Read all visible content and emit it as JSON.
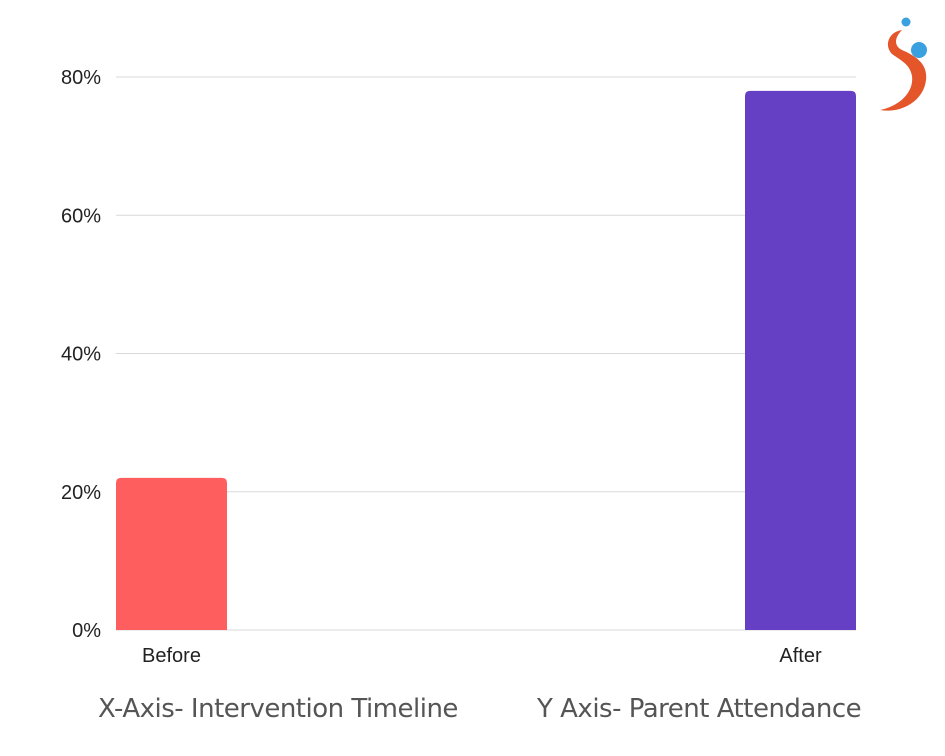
{
  "chart_data": {
    "type": "bar",
    "categories": [
      "Before",
      "After"
    ],
    "values": [
      22,
      78
    ],
    "colors": [
      "#ff5e5e",
      "#6540c4"
    ],
    "ylim": [
      0,
      80
    ],
    "yticks": [
      0,
      20,
      40,
      60,
      80
    ],
    "ytick_labels": [
      "0%",
      "20%",
      "40%",
      "60%",
      "80%"
    ],
    "grid": true
  },
  "captions": {
    "x_axis": "X-Axis- Intervention Timeline",
    "y_axis": "Y Axis- Parent Attendance"
  },
  "logo": {
    "icon": "s-swirl-logo-icon",
    "colors": {
      "swirl": "#e4552a",
      "dots": "#3aa0e0"
    }
  }
}
